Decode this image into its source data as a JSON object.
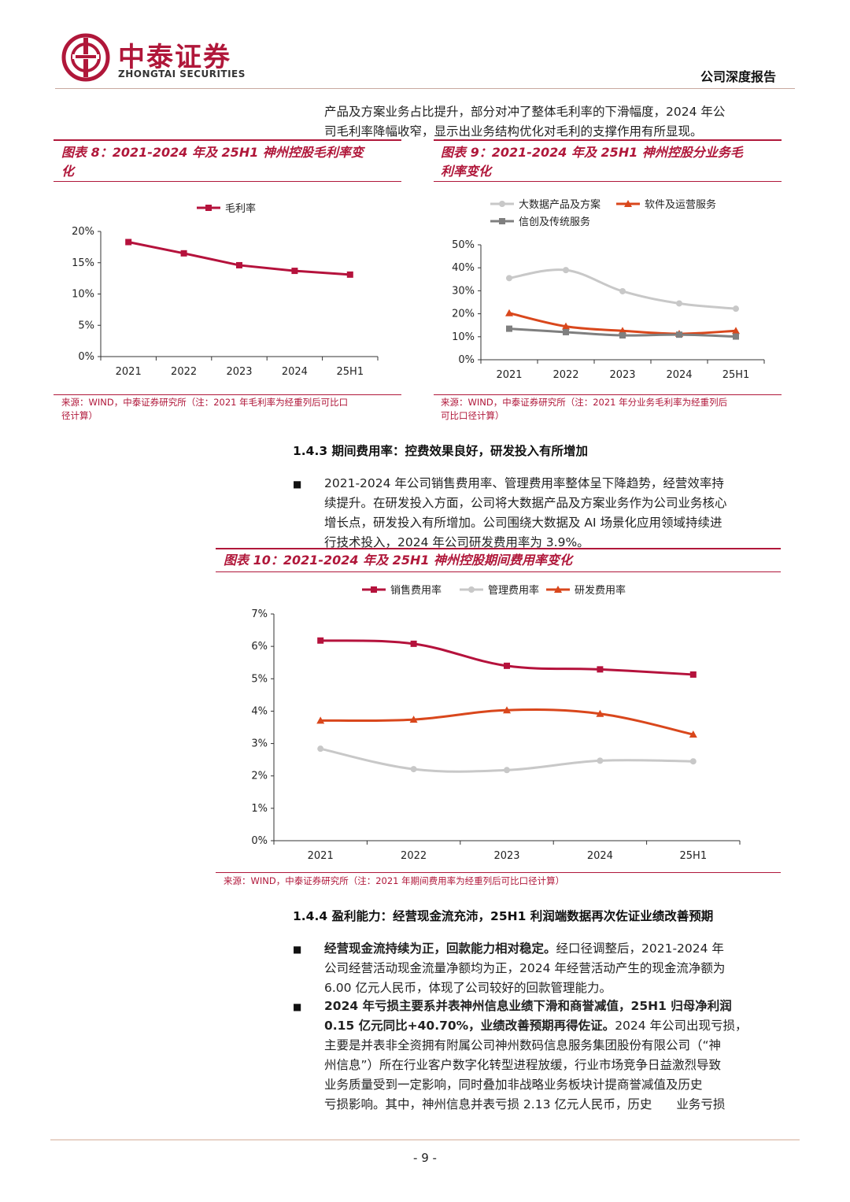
{
  "header": {
    "brand_cn": "中泰证券",
    "brand_en": "ZHONGTAI SECURITIES",
    "report_type": "公司深度报告"
  },
  "intro": {
    "line1": "产品及方案业务占比提升，部分对冲了整体毛利率的下滑幅度，2024 年公",
    "line2": "司毛利率降幅收窄，显示出业务结构优化对毛利的支撑作用有所显现。"
  },
  "fig8": {
    "title_line1": "图表 8：2021-2024 年及 25H1 神州控股毛利率变",
    "title_line2": "化",
    "source_line1": "来源：WIND，中泰证券研究所（注：2021 年毛利率为经重列后可比口",
    "source_line2": "径计算）"
  },
  "fig9": {
    "title_line1": "图表 9：2021-2024 年及 25H1 神州控股分业务毛",
    "title_line2": "利率变化",
    "source_line1": "来源：WIND，中泰证券研究所（注：2021 年分业务毛利率为经重列后",
    "source_line2": "可比口径计算）"
  },
  "section_143": {
    "heading": "1.4.3 期间费用率：控费效果良好，研发投入有所增加",
    "bullet": "■",
    "lines": [
      "2021-2024 年公司销售费用率、管理费用率整体呈下降趋势，经营效率持",
      "续提升。在研发投入方面，公司将大数据产品及方案业务作为公司业务核心",
      "增长点，研发投入有所增加。公司围绕大数据及 AI 场景化应用领域持续进",
      "行技术投入，2024 年公司研发费用率为 3.9%。"
    ]
  },
  "fig10": {
    "title": "图表 10：2021-2024 年及 25H1 神州控股期间费用率变化",
    "source": "来源：WIND，中泰证券研究所（注：2021 年期间费用率为经重列后可比口径计算）"
  },
  "section_144": {
    "heading": "1.4.4 盈利能力：经营现金流充沛，25H1 利润端数据再次佐证业绩改善预期",
    "bullet": "■",
    "b1_bold": "经营现金流持续为正，回款能力相对稳定。",
    "b1_line1_rest": "经口径调整后，2021-2024 年",
    "b1_line2": "公司经营活动现金流量净额均为正，2024 年经营活动产生的现金流净额为",
    "b1_line3": "6.00 亿元人民币，体现了公司较好的回款管理能力。",
    "b2_bold_line1": "2024 年亏损主要系并表神州信息业绩下滑和商誉减值，25H1 归母净利润",
    "b2_bold_line2": "0.15 亿元同比+40.70%，业绩改善预期再得佐证。",
    "b2_line2_rest": "2024 年公司出现亏损，",
    "b2_line3": "主要是并表非全资拥有附属公司神州数码信息服务集团股份有限公司（“神",
    "b2_line4": "州信息”）所在行业客户数字化转型进程放缓，行业市场竞争日益激烈导致",
    "b2_line5": "业务质量受到一定影响，同时叠加非战略业务板块计提商誉减值及历史",
    "b2_line6": "亏损影响。其中，神州信息并表亏损 2.13 亿元人民币，历史　　业务亏损"
  },
  "footer": {
    "page": "- 9 -"
  },
  "chart_data": [
    {
      "type": "line",
      "categories": [
        "2021",
        "2022",
        "2023",
        "2024",
        "25H1"
      ],
      "series": [
        {
          "name": "毛利率",
          "values": [
            18.3,
            16.5,
            14.6,
            13.7,
            13.1
          ],
          "color": "#b5123c",
          "marker": "square"
        }
      ],
      "yticks": [
        "0%",
        "5%",
        "10%",
        "15%",
        "20%"
      ],
      "ylim": [
        0,
        20
      ],
      "grid": false,
      "legend": "top"
    },
    {
      "type": "line",
      "categories": [
        "2021",
        "2022",
        "2023",
        "2024",
        "25H1"
      ],
      "series": [
        {
          "name": "大数据产品及方案",
          "values": [
            35.5,
            39.0,
            29.8,
            24.5,
            22.2
          ],
          "color": "#c8c8c8",
          "marker": "circle"
        },
        {
          "name": "软件及运营服务",
          "values": [
            20.3,
            14.5,
            12.6,
            11.3,
            12.6
          ],
          "color": "#d9471c",
          "marker": "triangle"
        },
        {
          "name": "信创及传统服务",
          "values": [
            13.5,
            12.0,
            10.6,
            10.9,
            10.1
          ],
          "color": "#7f7f7f",
          "marker": "square"
        }
      ],
      "yticks": [
        "0%",
        "10%",
        "20%",
        "30%",
        "40%",
        "50%"
      ],
      "ylim": [
        0,
        50
      ],
      "grid": false,
      "legend": "top"
    },
    {
      "type": "line",
      "categories": [
        "2021",
        "2022",
        "2023",
        "2024",
        "25H1"
      ],
      "series": [
        {
          "name": "销售费用率",
          "values": [
            6.18,
            6.08,
            5.4,
            5.29,
            5.13
          ],
          "color": "#b5123c",
          "marker": "square"
        },
        {
          "name": "管理费用率",
          "values": [
            2.84,
            2.21,
            2.18,
            2.47,
            2.45
          ],
          "color": "#c8c8c8",
          "marker": "circle"
        },
        {
          "name": "研发费用率",
          "values": [
            3.71,
            3.74,
            4.03,
            3.92,
            3.28
          ],
          "color": "#d9471c",
          "marker": "triangle"
        }
      ],
      "yticks": [
        "0%",
        "1%",
        "2%",
        "3%",
        "4%",
        "5%",
        "6%",
        "7%"
      ],
      "ylim": [
        0,
        7
      ],
      "grid": false,
      "legend": "top"
    }
  ]
}
